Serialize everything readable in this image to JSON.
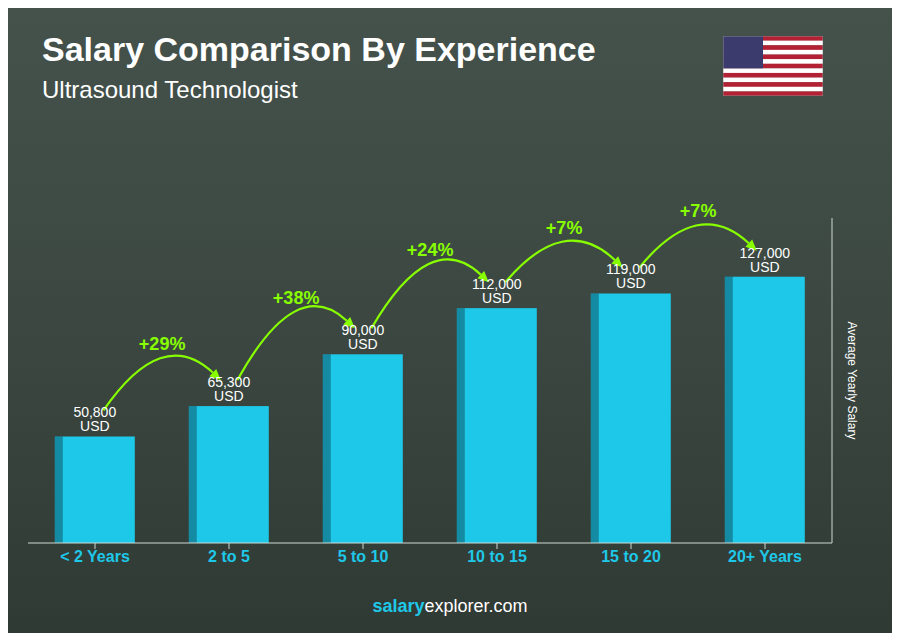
{
  "chart_data": {
    "type": "bar",
    "title": "Salary Comparison By Experience",
    "subtitle": "Ultrasound Technologist",
    "categories": [
      "< 2 Years",
      "2 to 5",
      "5 to 10",
      "10 to 15",
      "15 to 20",
      "20+ Years"
    ],
    "values": [
      50800,
      65300,
      90000,
      112000,
      119000,
      127000
    ],
    "value_labels": [
      "50,800 USD",
      "65,300 USD",
      "90,000 USD",
      "112,000 USD",
      "119,000 USD",
      "127,000 USD"
    ],
    "data_labels": true,
    "color": "#1ec8e8",
    "ylim": [
      0,
      155000
    ],
    "tick_labels": "x",
    "grid": false,
    "ylabel": "Average Yearly Salary",
    "annotations": [
      {
        "text": "+29%",
        "from": "< 2 Years",
        "to": "2 to 5",
        "color": "#88ff00"
      },
      {
        "text": "+38%",
        "from": "2 to 5",
        "to": "5 to 10",
        "color": "#88ff00"
      },
      {
        "text": "+24%",
        "from": "5 to 10",
        "to": "10 to 15",
        "color": "#88ff00"
      },
      {
        "text": "+7%",
        "from": "10 to 15",
        "to": "15 to 20",
        "color": "#88ff00"
      },
      {
        "text": "+7%",
        "from": "15 to 20",
        "to": "20+ Years",
        "color": "#88ff00"
      }
    ],
    "footer": [
      "salary",
      "explorer",
      ".com"
    ]
  }
}
